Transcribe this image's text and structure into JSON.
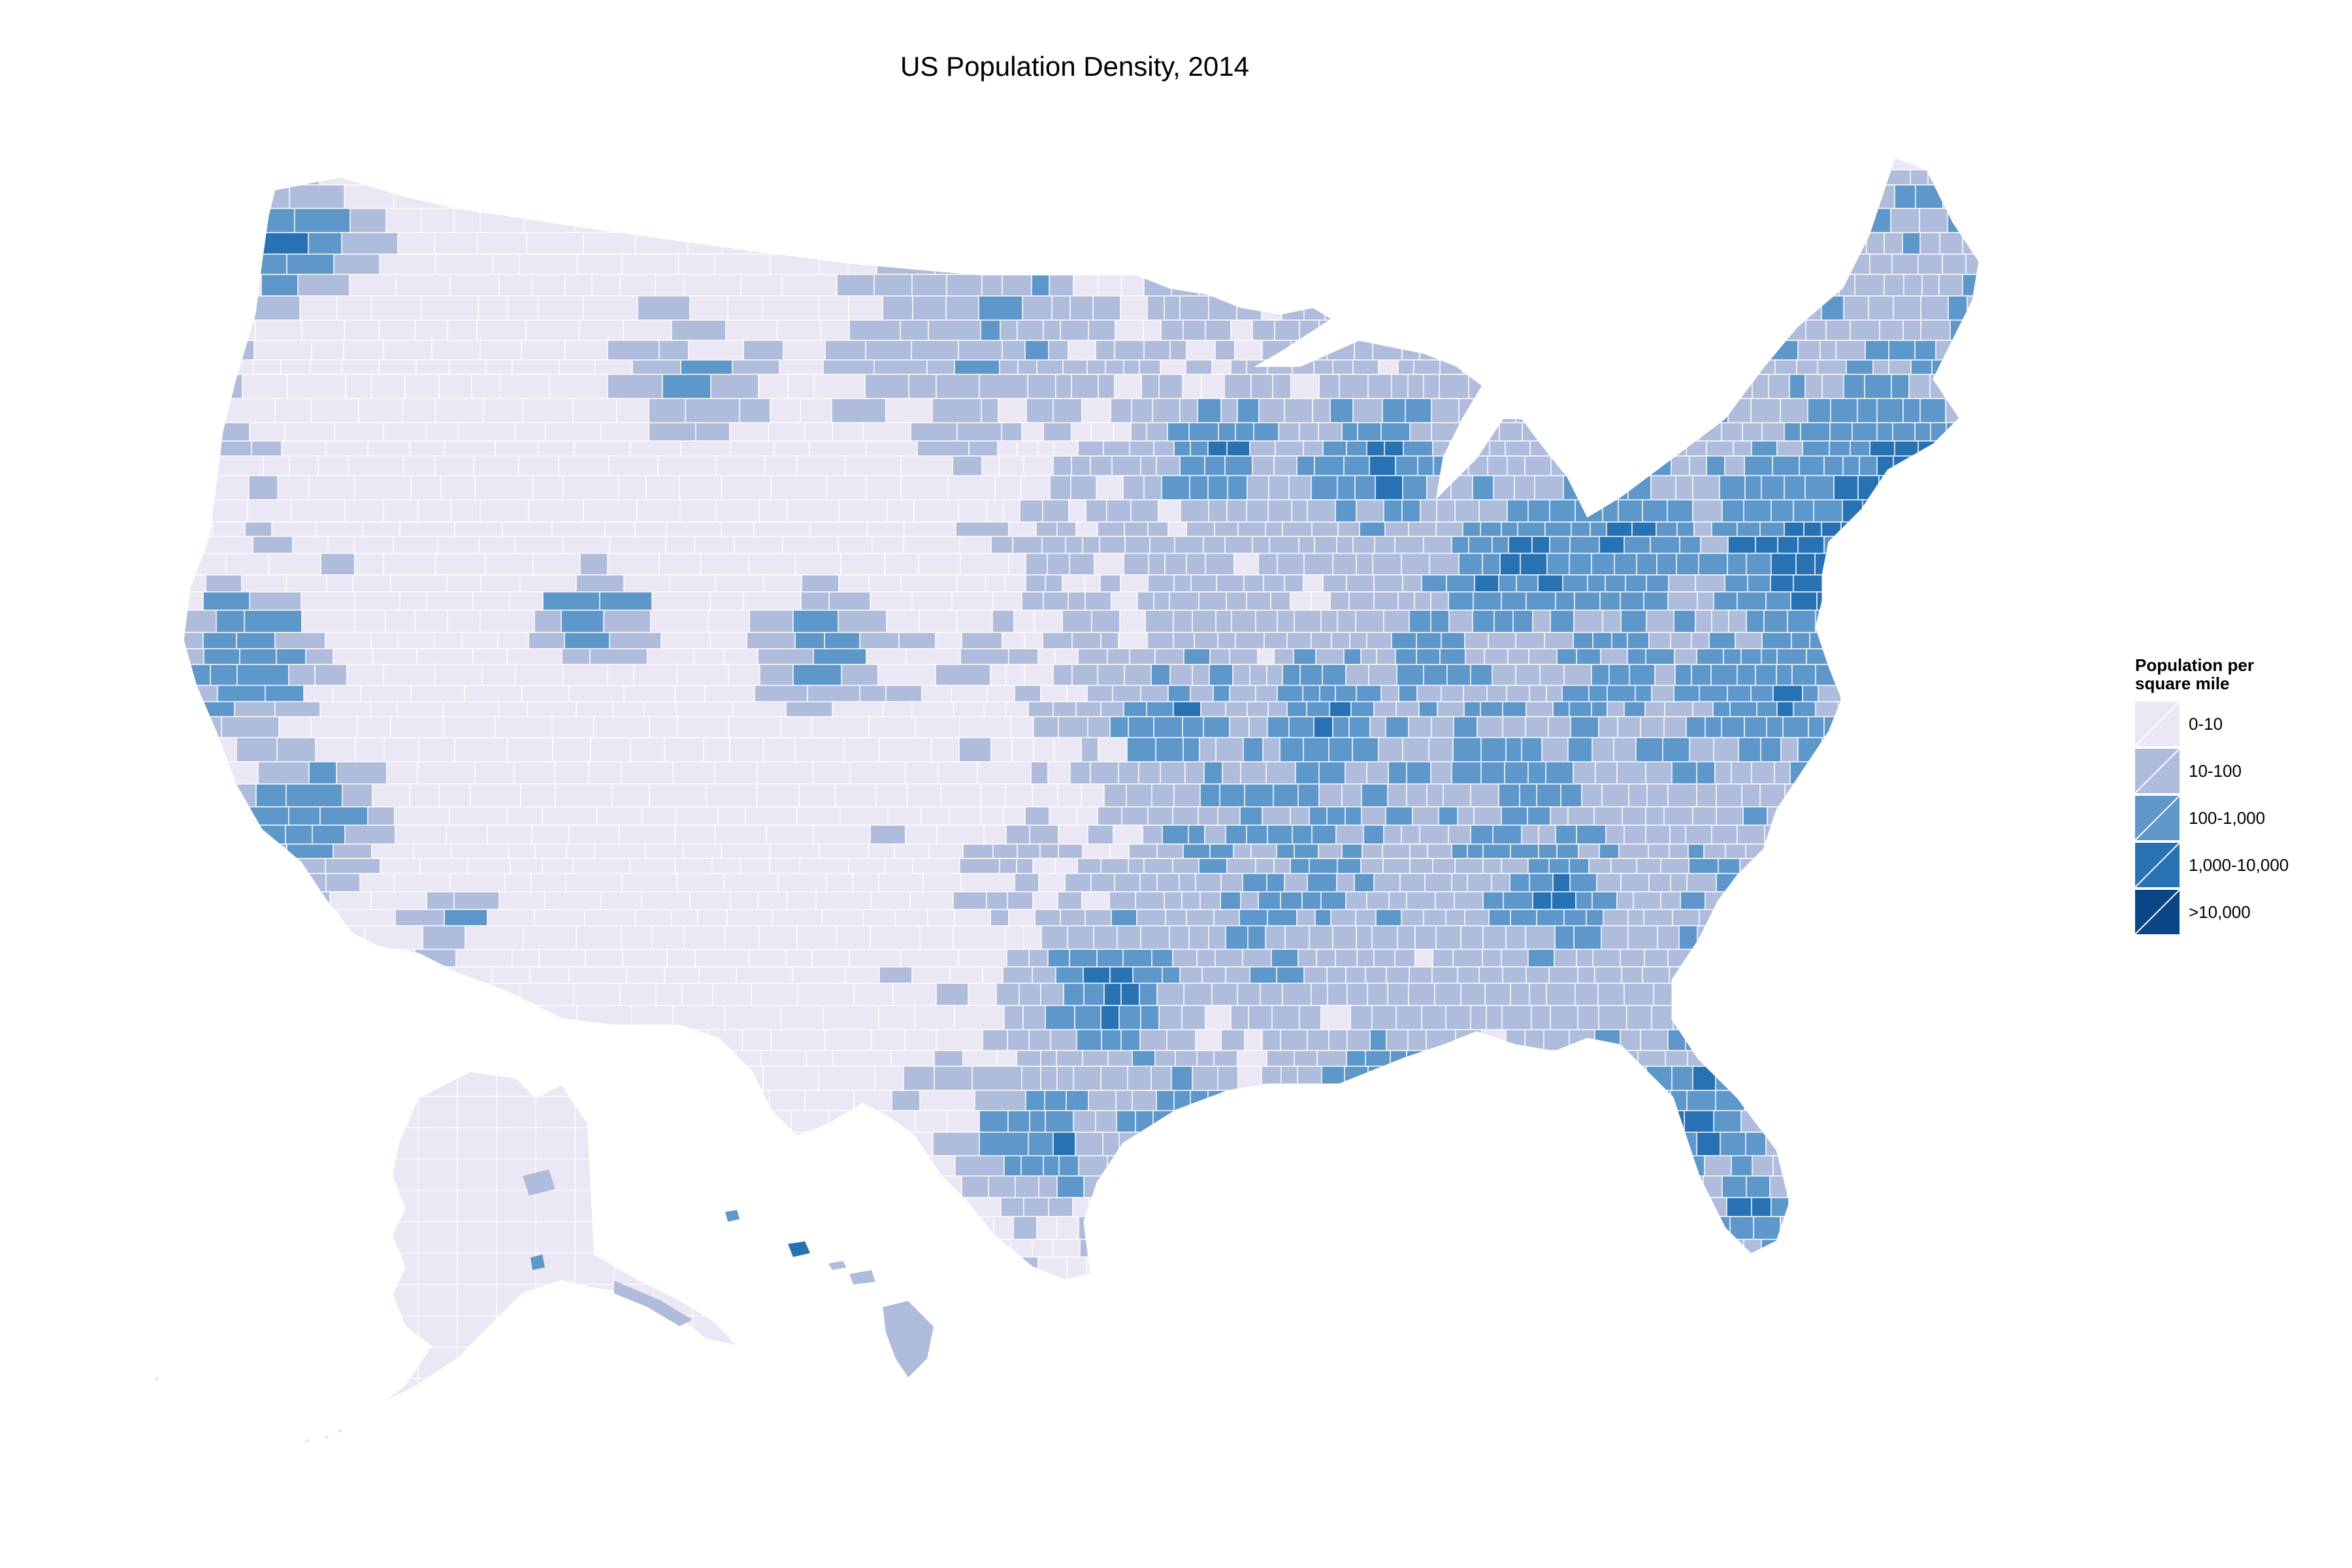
{
  "title": "US Population Density, 2014",
  "legend": {
    "title_line1": "Population per",
    "title_line2": "square mile",
    "items": [
      {
        "label": "0-10",
        "color": "#ebe7f4"
      },
      {
        "label": "10-100",
        "color": "#afbcdc"
      },
      {
        "label": "100-1,000",
        "color": "#5e97ca"
      },
      {
        "label": "1,000-10,000",
        "color": "#2872b3"
      },
      {
        "label": ">10,000",
        "color": "#0a4585"
      }
    ]
  },
  "chart_data": {
    "type": "choropleth",
    "title": "US Population Density, 2014",
    "legend_title": "Population per square mile",
    "legend_placement": "right",
    "bins": [
      "0-10",
      "10-100",
      "100-1,000",
      "1,000-10,000",
      ">10,000"
    ],
    "colors": [
      "#ebe7f4",
      "#afbcdc",
      "#5e97ca",
      "#2872b3",
      "#0a4585"
    ],
    "regions": [
      "Contiguous United States",
      "Alaska",
      "Hawaii"
    ]
  }
}
